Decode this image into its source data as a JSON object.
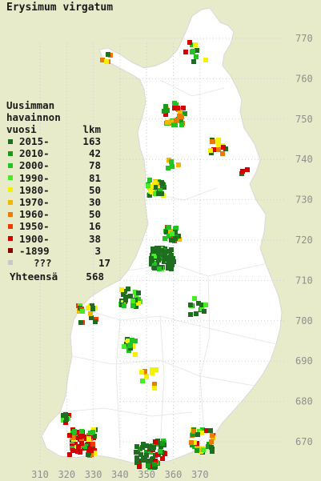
{
  "title": "Erysimum virgatum",
  "legend": {
    "heading_lines": [
      "Uusimman",
      "havainnon"
    ],
    "col_year": "vuosi",
    "col_count": "lkm",
    "rows": [
      {
        "label": "2015-",
        "count": "163",
        "color": "#1f6e1f"
      },
      {
        "label": "2010-",
        "count": "42",
        "color": "#199a19"
      },
      {
        "label": "2000-",
        "count": "78",
        "color": "#22c322"
      },
      {
        "label": "1990-",
        "count": "81",
        "color": "#44ee22"
      },
      {
        "label": "1980-",
        "count": "50",
        "color": "#f2f200"
      },
      {
        "label": "1970-",
        "count": "30",
        "color": "#f2b800"
      },
      {
        "label": "1960-",
        "count": "50",
        "color": "#f07a00"
      },
      {
        "label": "1950-",
        "count": "16",
        "color": "#ee3c00"
      },
      {
        "label": "1900-",
        "count": "38",
        "color": "#d40000"
      },
      {
        "label": "-1899",
        "count": "3",
        "color": "#8c0000"
      },
      {
        "label": "???",
        "count": "17",
        "color": "#c8c8c8"
      }
    ],
    "total_label": "Yhteensä",
    "total_count": "568"
  },
  "grid": {
    "x_ticks": [
      "310",
      "320",
      "330",
      "340",
      "350",
      "360",
      "370"
    ],
    "y_ticks": [
      "770",
      "760",
      "750",
      "740",
      "730",
      "720",
      "710",
      "700",
      "690",
      "680",
      "670"
    ]
  },
  "colors": {
    "background": "#e8ebc9",
    "land": "#ffffff",
    "grid": "#cfcfcf",
    "tick_label": "#8f8f8f"
  }
}
